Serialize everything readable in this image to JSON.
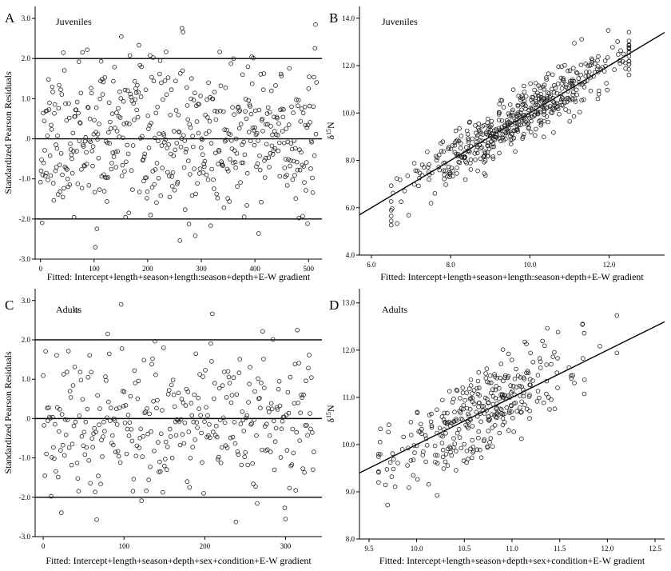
{
  "chart_data": [
    {
      "panel": "A",
      "type": "scatter",
      "subtitle": "Juveniles",
      "xlabel": "Fitted: Intercept+length+season+length:season+depth+E-W gradient",
      "ylabel": "Standardized Pearson Residuals",
      "xlim": [
        -10,
        525
      ],
      "ylim": [
        -3.0,
        3.3
      ],
      "xticks": [
        0,
        100,
        200,
        300,
        400,
        500
      ],
      "yticks": [
        3.0,
        2.0,
        1.0,
        0.0,
        -1.0,
        -2.0,
        -3.0
      ],
      "ytick_labels": [
        "3.0",
        "2.0",
        "1.0",
        ".0",
        "-1.0",
        "-2.0",
        "-3.0"
      ],
      "hlines": [
        2.0,
        0.0,
        -2.0
      ],
      "n_points": 520,
      "seed": 11
    },
    {
      "panel": "B",
      "type": "scatter",
      "subtitle": "Juveniles",
      "xlabel": "Fitted: Intercept+length+season+length:season+depth+E-W gradient",
      "ylabel": "δ15N",
      "xlim": [
        5.7,
        13.4
      ],
      "ylim": [
        4.0,
        14.5
      ],
      "xticks": [
        6.0,
        8.0,
        10.0,
        12.0
      ],
      "xtick_labels": [
        "6.0",
        "8.0",
        "10.0",
        "12.0"
      ],
      "yticks": [
        4.0,
        6.0,
        8.0,
        10.0,
        12.0,
        14.0
      ],
      "ytick_labels": [
        "4.0",
        "6.0",
        "8.0",
        "10.0",
        "12.0",
        "14.0"
      ],
      "fit_line": {
        "slope": 1.0,
        "intercept": 0.0
      },
      "n_points": 520,
      "x_center": 9.6,
      "x_spread": 1.35,
      "x_min": 6.5,
      "x_max": 12.5,
      "noise": 0.55,
      "seed": 23
    },
    {
      "panel": "C",
      "type": "scatter",
      "subtitle": "Adults",
      "xlabel": "Fitted: Intercept+length+season+depth+sex+condition+E-W gradient",
      "ylabel": "Standardized Pearson Residuals",
      "xlim": [
        -10,
        345
      ],
      "ylim": [
        -3.0,
        3.3
      ],
      "xticks": [
        0,
        100,
        200,
        300
      ],
      "yticks": [
        3.0,
        2.0,
        1.0,
        0.0,
        -1.0,
        -2.0,
        -3.0
      ],
      "ytick_labels": [
        "3.0",
        "2.0",
        "1.0",
        ".0",
        "-1.0",
        "-2.0",
        "-3.0"
      ],
      "hlines": [
        2.0,
        0.0,
        -2.0
      ],
      "n_points": 345,
      "seed": 37
    },
    {
      "panel": "D",
      "type": "scatter",
      "subtitle": "Adults",
      "xlabel": "Fitted: Intercept+length+season+depth+sex+condition+E-W gradient",
      "ylabel": "δ15N",
      "xlim": [
        9.4,
        12.6
      ],
      "ylim": [
        8.0,
        13.3
      ],
      "xticks": [
        9.5,
        10.0,
        10.5,
        11.0,
        11.5,
        12.0,
        12.5
      ],
      "xtick_labels": [
        "9.5",
        "10.0",
        "10.5",
        "11.0",
        "11.5",
        "12.0",
        "12.5"
      ],
      "yticks": [
        8.0,
        9.0,
        10.0,
        11.0,
        12.0,
        13.0
      ],
      "ytick_labels": [
        "8.0",
        "9.0",
        "10.0",
        "11.0",
        "12.0",
        "13.0"
      ],
      "fit_line": {
        "slope": 1.0,
        "intercept": 0.0
      },
      "n_points": 345,
      "x_center": 10.65,
      "x_spread": 0.48,
      "x_min": 9.6,
      "x_max": 12.1,
      "noise": 0.45,
      "seed": 53
    }
  ]
}
